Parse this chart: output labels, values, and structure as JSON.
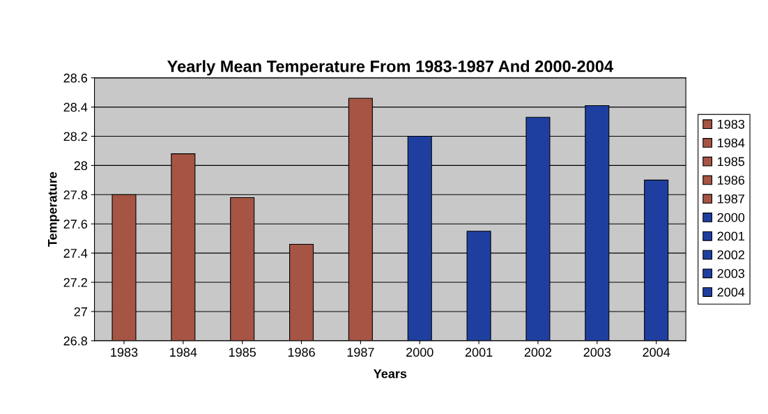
{
  "chart_data": {
    "type": "bar",
    "title": "Yearly Mean Temperature From 1983-1987 And 2000-2004",
    "xlabel": "Years",
    "ylabel": "Temperature",
    "categories": [
      "1983",
      "1984",
      "1985",
      "1986",
      "1987",
      "2000",
      "2001",
      "2002",
      "2003",
      "2004"
    ],
    "stacked": true,
    "series": [
      {
        "name": "1983",
        "color": "#a65444",
        "values": [
          27.8,
          null,
          null,
          null,
          null,
          null,
          null,
          null,
          null,
          null
        ]
      },
      {
        "name": "1984",
        "color": "#a65444",
        "values": [
          null,
          28.08,
          null,
          null,
          null,
          null,
          null,
          null,
          null,
          null
        ]
      },
      {
        "name": "1985",
        "color": "#a65444",
        "values": [
          null,
          null,
          27.78,
          null,
          null,
          null,
          null,
          null,
          null,
          null
        ]
      },
      {
        "name": "1986",
        "color": "#a65444",
        "values": [
          null,
          null,
          null,
          27.46,
          null,
          null,
          null,
          null,
          null,
          null
        ]
      },
      {
        "name": "1987",
        "color": "#a65444",
        "values": [
          null,
          null,
          null,
          null,
          28.46,
          null,
          null,
          null,
          null,
          null
        ]
      },
      {
        "name": "2000",
        "color": "#1f3fa0",
        "values": [
          null,
          null,
          null,
          null,
          null,
          28.2,
          null,
          null,
          null,
          null
        ]
      },
      {
        "name": "2001",
        "color": "#1f3fa0",
        "values": [
          null,
          null,
          null,
          null,
          null,
          null,
          27.55,
          null,
          null,
          null
        ]
      },
      {
        "name": "2002",
        "color": "#1f3fa0",
        "values": [
          null,
          null,
          null,
          null,
          null,
          null,
          null,
          28.33,
          null,
          null
        ]
      },
      {
        "name": "2003",
        "color": "#1f3fa0",
        "values": [
          null,
          null,
          null,
          null,
          null,
          null,
          null,
          null,
          28.41,
          null
        ]
      },
      {
        "name": "2004",
        "color": "#1f3fa0",
        "values": [
          null,
          null,
          null,
          null,
          null,
          null,
          null,
          null,
          null,
          27.9
        ]
      }
    ],
    "ylim": [
      26.8,
      28.6
    ],
    "yticks": [
      26.8,
      27,
      27.2,
      27.4,
      27.6,
      27.8,
      28,
      28.2,
      28.4,
      28.6
    ],
    "grid": "y",
    "legend": "right"
  }
}
